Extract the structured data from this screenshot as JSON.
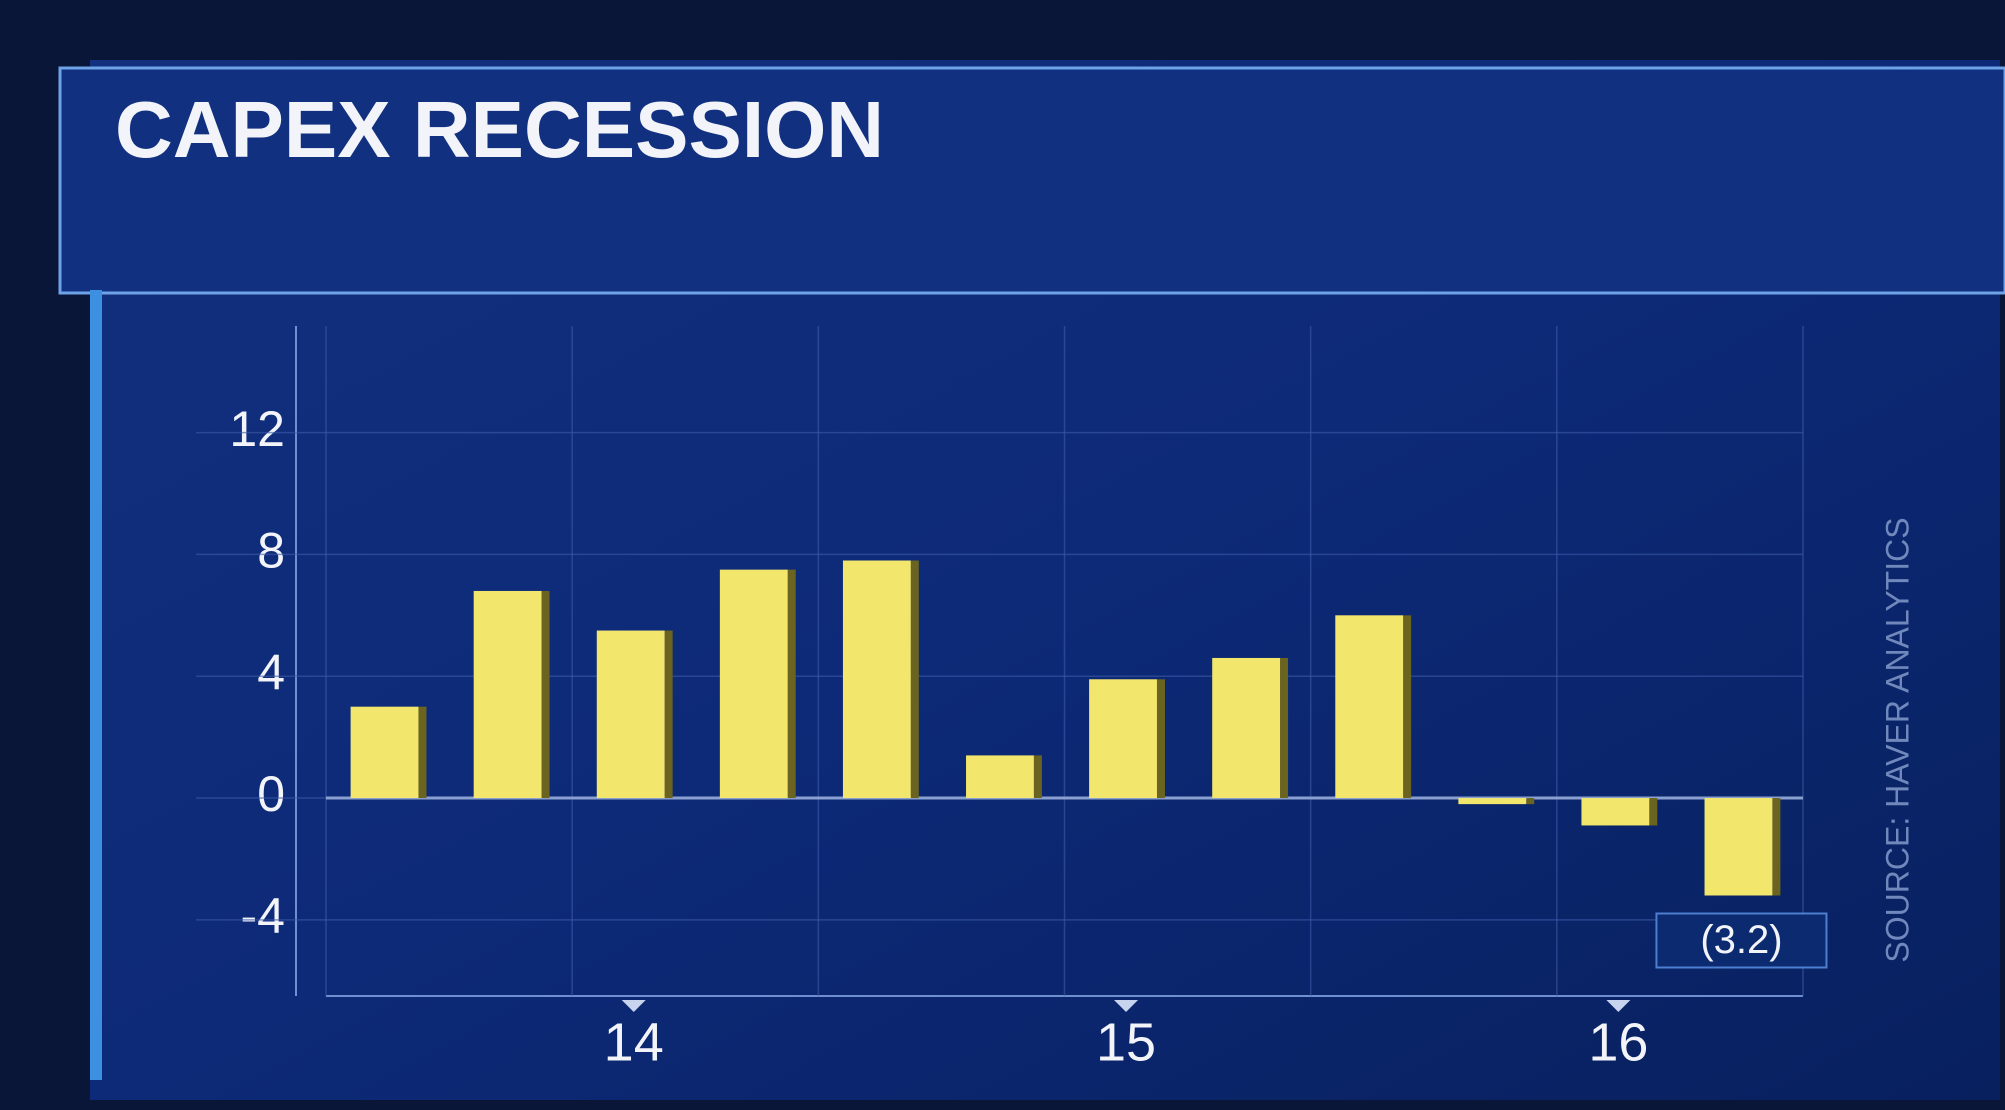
{
  "chart_data": {
    "type": "bar",
    "title": "CAPEX RECESSION",
    "categories": [
      null,
      null,
      "14",
      null,
      null,
      null,
      "15",
      null,
      null,
      null,
      "16",
      null
    ],
    "values": [
      3.0,
      6.8,
      5.5,
      7.5,
      7.8,
      1.4,
      3.9,
      4.6,
      6.0,
      -0.2,
      -0.9,
      -3.2
    ],
    "value_labels": [
      null,
      null,
      null,
      null,
      null,
      null,
      null,
      null,
      null,
      null,
      null,
      "(3.2)"
    ],
    "color": "#f3e66c",
    "ylim": [
      -6.5,
      15.5
    ],
    "yticks": [
      -4,
      0,
      4,
      8,
      12
    ],
    "grid": true,
    "source": "SOURCE: HAVER ANALYTICS"
  }
}
